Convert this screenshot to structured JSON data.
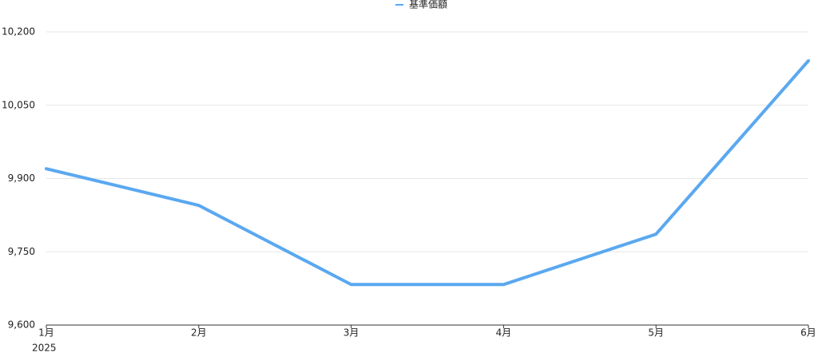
{
  "chart_data": {
    "type": "line",
    "categories": [
      "1月",
      "2月",
      "3月",
      "4月",
      "5月",
      "6月"
    ],
    "year_label": "2025",
    "series": [
      {
        "name": "基準価額",
        "color": "#5aa8f0",
        "values": [
          9920,
          9845,
          9683,
          9683,
          9786,
          10141
        ]
      }
    ],
    "ylim": [
      9600,
      10200
    ],
    "yticks": [
      {
        "value": 9600,
        "label": "9,600"
      },
      {
        "value": 9750,
        "label": "9,750"
      },
      {
        "value": 9900,
        "label": "9,900"
      },
      {
        "value": 10050,
        "label": "10,050"
      },
      {
        "value": 10200,
        "label": "10,200"
      }
    ],
    "grid": true,
    "legend": "top"
  }
}
